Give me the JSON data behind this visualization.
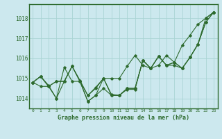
{
  "title": "Graphe pression niveau de la mer (hPa)",
  "background_color": "#cce8ee",
  "plot_bg_color": "#cce8ee",
  "line_color": "#2d6a2d",
  "grid_color": "#aad4d4",
  "border_color": "#2d6a2d",
  "xlim": [
    -0.5,
    23.5
  ],
  "ylim": [
    1013.5,
    1018.7
  ],
  "yticks": [
    1014,
    1015,
    1016,
    1017,
    1018
  ],
  "xtick_labels": [
    "0",
    "1",
    "2",
    "3",
    "4",
    "5",
    "6",
    "7",
    "8",
    "9",
    "10",
    "11",
    "12",
    "13",
    "14",
    "15",
    "16",
    "17",
    "18",
    "19",
    "20",
    "21",
    "22",
    "23"
  ],
  "series": [
    [
      1014.8,
      1015.1,
      1014.65,
      1014.0,
      1015.55,
      1014.85,
      1014.85,
      1013.85,
      1014.15,
      1014.5,
      1014.15,
      1014.15,
      1014.45,
      1014.45,
      1015.9,
      1015.5,
      1016.1,
      1015.65,
      1015.65,
      1015.5,
      1016.05,
      1016.7,
      1018.0,
      1018.3
    ],
    [
      1014.8,
      1014.6,
      1014.6,
      1014.85,
      1014.85,
      1015.6,
      1014.85,
      1014.15,
      1014.55,
      1015.0,
      1015.0,
      1015.0,
      1015.6,
      1016.15,
      1015.65,
      1015.5,
      1015.65,
      1016.15,
      1015.8,
      1016.65,
      1017.15,
      1017.7,
      1018.0,
      1018.3
    ],
    [
      1014.8,
      1015.1,
      1014.6,
      1014.85,
      1014.85,
      1015.6,
      1014.9,
      1014.15,
      1014.5,
      1015.0,
      1014.2,
      1014.15,
      1014.5,
      1014.5,
      1015.9,
      1015.5,
      1016.1,
      1015.65,
      1015.8,
      1015.5,
      1016.05,
      1016.7,
      1017.8,
      1018.3
    ],
    [
      1014.8,
      1015.1,
      1014.6,
      1014.0,
      1014.85,
      1015.6,
      1014.85,
      1013.85,
      1014.15,
      1015.0,
      1014.15,
      1014.15,
      1014.5,
      1014.5,
      1015.9,
      1015.5,
      1016.1,
      1015.65,
      1015.8,
      1015.5,
      1016.05,
      1016.7,
      1017.8,
      1018.3
    ]
  ]
}
